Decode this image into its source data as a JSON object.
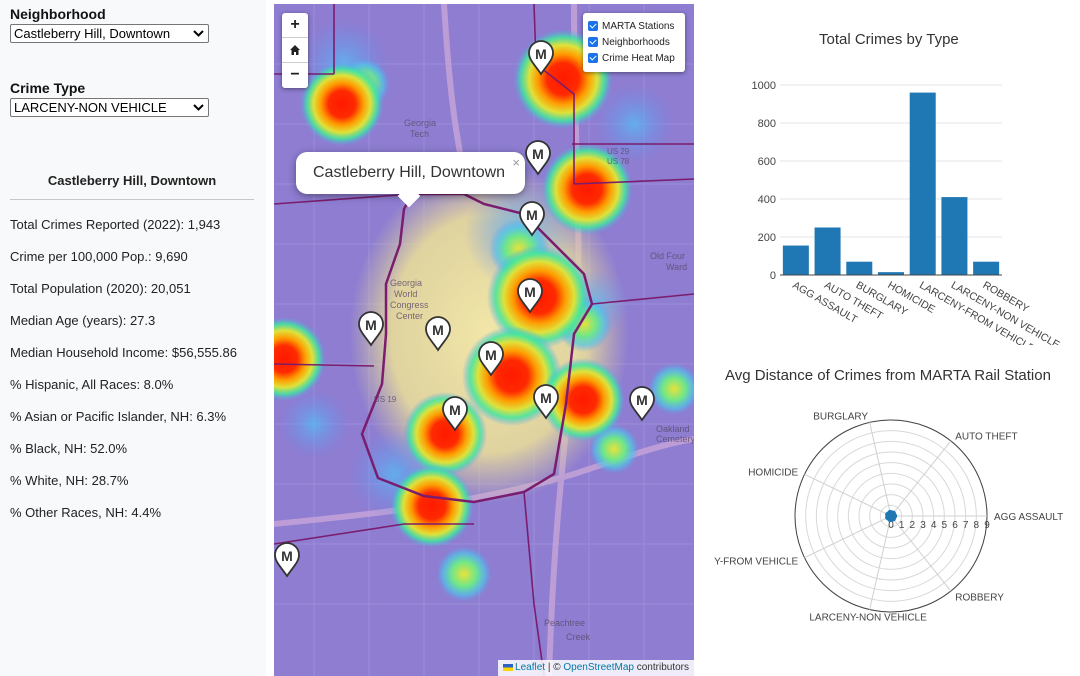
{
  "controls": {
    "neighborhood_label": "Neighborhood",
    "neighborhood_value": "Castleberry Hill, Downtown",
    "crime_type_label": "Crime Type",
    "crime_type_value": "LARCENY-NON VEHICLE"
  },
  "stats": {
    "title": "Castleberry Hill, Downtown",
    "total_crimes": "Total Crimes Reported (2022): 1,943",
    "crime_per_100k": "Crime per 100,000 Pop.: 9,690",
    "population": "Total Population (2020): 20,051",
    "median_age": "Median Age (years): 27.3",
    "median_income": "Median Household Income: $56,555.86",
    "pct_hispanic": "% Hispanic, All Races: 8.0%",
    "pct_asian": "% Asian or Pacific Islander, NH: 6.3%",
    "pct_black": "% Black, NH: 52.0%",
    "pct_white": "% White, NH: 28.7%",
    "pct_other": "% Other Races, NH: 4.4%"
  },
  "map": {
    "zoom_in": "+",
    "home_icon": "home-icon",
    "zoom_out": "−",
    "layers": [
      "MARTA Stations",
      "Neighborhoods",
      "Crime Heat Map"
    ],
    "popup_text": "Castleberry Hill, Downtown",
    "popup_close": "×",
    "station_marker_letter": "M",
    "attribution": {
      "leaflet": "Leaflet",
      "separator": " | © ",
      "osm": "OpenStreetMap",
      "suffix": " contributors"
    },
    "colors": {
      "heat_base": "#8e7dd1",
      "neighborhood_border": "#7a1d6e",
      "hot": "#ff1a00",
      "marker_fill": "#ffffff",
      "marker_stroke": "#333333"
    },
    "place_labels": [
      "Georgia Tech",
      "Georgia World Congress Center",
      "Old Four Ward",
      "Peachtree Creek",
      "US 29",
      "US 78",
      "US 19",
      "Oakland Cemetery"
    ]
  },
  "chart_data": [
    {
      "type": "bar",
      "title": "Total Crimes by Type",
      "categories": [
        "AGG ASSAULT",
        "AUTO THEFT",
        "BURGLARY",
        "HOMICIDE",
        "LARCENY-FROM VEHICLE",
        "LARCENY-NON VEHICLE",
        "ROBBERY"
      ],
      "values": [
        155,
        250,
        70,
        15,
        960,
        410,
        70
      ],
      "ylim": [
        0,
        1000
      ],
      "yticks": [
        0,
        200,
        400,
        600,
        800,
        1000
      ],
      "tick_labels": [
        "AGG ASSAULT",
        "AUTO THEFT",
        "BURGLARY",
        "HOMICIDE",
        "LARCENY-FROM VEHICLE",
        "LARCENY-NON VEHICLE",
        "ROBBERY"
      ],
      "color": "#1f77b4",
      "grid": true
    },
    {
      "type": "polar-scatter",
      "title": "Avg Distance of Crimes from MARTA Rail Station",
      "categories": [
        "AGG ASSAULT",
        "AUTO THEFT",
        "BURGLARY",
        "HOMICIDE",
        "LARCENY-FROM VEHICLE",
        "LARCENY-NON VEHICLE",
        "ROBBERY"
      ],
      "values": [
        0.3,
        0.3,
        0.3,
        0.3,
        0.3,
        0.3,
        0.3
      ],
      "rlim": [
        0,
        9
      ],
      "rticks": [
        "0",
        "1",
        "2",
        "3",
        "4",
        "5",
        "6",
        "7",
        "8",
        "9"
      ],
      "angular_labels": [
        "AGG ASSAULT",
        "AUTO THEFT",
        "BURGLARY",
        "HOMICIDE",
        "LARCENY-FROM VEHICLE",
        "LARCENY-NON VEHICLE",
        "ROBBERY"
      ],
      "angular_labels_shown": [
        "AGG ASSAULT",
        "AUTO THEFT",
        "BURGLARY",
        "HOMICIDE",
        "Y-FROM VEHICLE",
        "LARCENY-NON VEHICLE",
        "ROBBERY"
      ],
      "color": "#1f77b4",
      "grid": true
    }
  ]
}
